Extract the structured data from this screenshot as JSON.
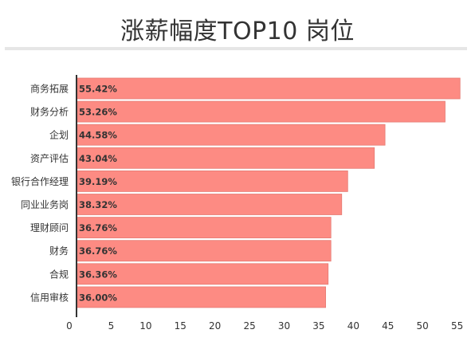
{
  "chart_data": {
    "type": "bar",
    "orientation": "horizontal",
    "title": "涨薪幅度TOP10 岗位",
    "categories": [
      "商务拓展",
      "财务分析",
      "企划",
      "资产评估",
      "银行合作经理",
      "同业业务岗",
      "理财顾问",
      "财务",
      "合规",
      "信用审核"
    ],
    "values": [
      55.42,
      53.26,
      44.58,
      43.04,
      39.19,
      38.32,
      36.76,
      36.76,
      36.36,
      36.0
    ],
    "value_labels": [
      "55.42%",
      "53.26%",
      "44.58%",
      "43.04%",
      "39.19%",
      "38.32%",
      "36.76%",
      "36.76%",
      "36.36%",
      "36.00%"
    ],
    "xticks": [
      0,
      5,
      10,
      15,
      20,
      25,
      30,
      35,
      40,
      45,
      50,
      55
    ],
    "xlim": [
      0,
      56.2
    ],
    "grid": false,
    "bar_color": "#fd8b83",
    "bar_edge_color": "#e57b73",
    "axis_color": "#333333"
  }
}
